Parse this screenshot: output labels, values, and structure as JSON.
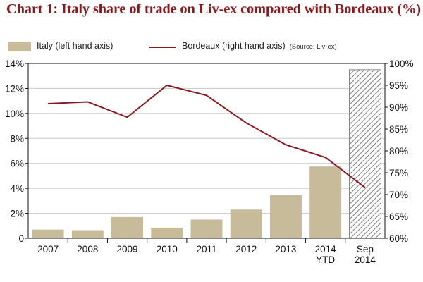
{
  "chart_data": {
    "type": "bar",
    "title": "Chart 1: Italy share of trade on Liv-ex compared with Bordeaux (%)",
    "legend": {
      "placement": "top-left",
      "bar_label": "Italy (left hand axis)",
      "line_label": "Bordeaux (right hand axis)",
      "source": "(Source: Liv-ex)"
    },
    "categories": [
      {
        "label": [
          "2007"
        ]
      },
      {
        "label": [
          "2008"
        ]
      },
      {
        "label": [
          "2009"
        ]
      },
      {
        "label": [
          "2010"
        ]
      },
      {
        "label": [
          "2011"
        ]
      },
      {
        "label": [
          "2012"
        ]
      },
      {
        "label": [
          "2013"
        ]
      },
      {
        "label": [
          "2014",
          "YTD"
        ]
      },
      {
        "label": [
          "Sep",
          "2014"
        ]
      }
    ],
    "series": [
      {
        "name": "Italy (left hand axis)",
        "type": "bar",
        "axis": "left",
        "values": [
          0.7,
          0.65,
          1.7,
          0.85,
          1.5,
          2.3,
          3.45,
          5.75,
          13.5
        ],
        "hatched_last": true
      },
      {
        "name": "Bordeaux (right hand axis)",
        "type": "line",
        "axis": "right",
        "values": [
          90.8,
          91.2,
          87.7,
          95.0,
          92.7,
          86.4,
          81.4,
          78.5,
          71.6
        ]
      }
    ],
    "y_left": {
      "min": 0,
      "max": 14,
      "step": 2,
      "ticks": [
        "0",
        "2%",
        "4%",
        "6%",
        "8%",
        "10%",
        "12%",
        "14%"
      ]
    },
    "y_right": {
      "min": 60,
      "max": 100,
      "step": 5,
      "ticks": [
        "60%",
        "65%",
        "70%",
        "75%",
        "80%",
        "85%",
        "90%",
        "95%",
        "100%"
      ]
    },
    "grid": "horizontal",
    "colors": {
      "bar": "#c7bb99",
      "line": "#8b1a1f",
      "title": "#8b1a1f",
      "grid": "#c8c8c8",
      "hatch": "#6e6e6e"
    }
  }
}
